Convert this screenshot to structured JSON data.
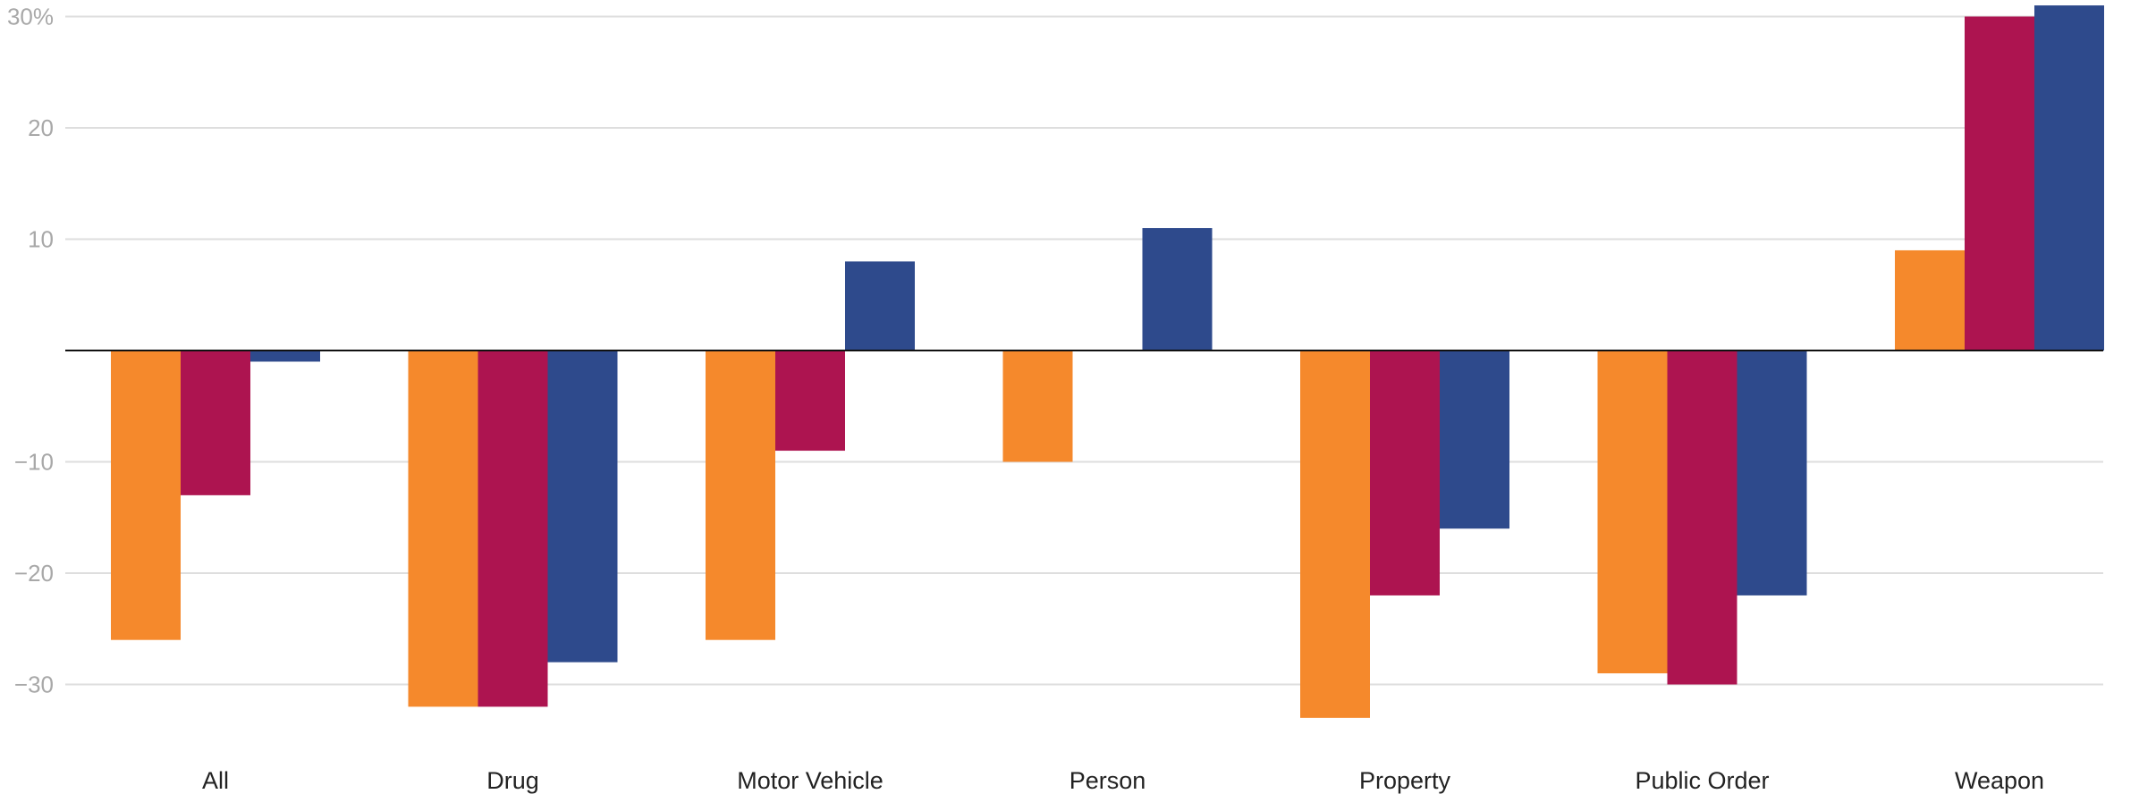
{
  "chart_data": {
    "type": "bar",
    "title": "",
    "xlabel": "",
    "ylabel": "",
    "categories": [
      "All",
      "Drug",
      "Motor Vehicle",
      "Person",
      "Property",
      "Public Order",
      "Weapon"
    ],
    "series": [
      {
        "color": "#f5892c",
        "values": [
          -26,
          -32,
          -26,
          -10,
          -33,
          -29,
          9
        ]
      },
      {
        "color": "#ad1450",
        "values": [
          -13,
          -32,
          -9,
          0,
          -22,
          -30,
          30
        ]
      },
      {
        "color": "#2e4a8c",
        "values": [
          -1,
          -28,
          8,
          11,
          -16,
          -22,
          31
        ]
      }
    ],
    "ylim": [
      -36.5,
      31
    ],
    "yticks": [
      {
        "value": 30,
        "label": "30%"
      },
      {
        "value": 20,
        "label": "20"
      },
      {
        "value": 10,
        "label": "10"
      },
      {
        "value": -10,
        "label": "−10"
      },
      {
        "value": -20,
        "label": "−20"
      },
      {
        "value": -30,
        "label": "−30"
      }
    ],
    "grid": true,
    "legend": "none"
  }
}
